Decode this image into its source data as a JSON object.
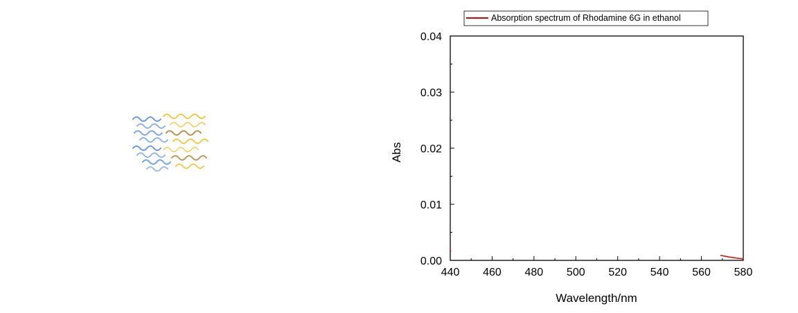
{
  "chart_data": {
    "type": "line",
    "title": "",
    "xlabel": "Wavelength/nm",
    "ylabel": "Abs",
    "xlim": [
      440,
      580
    ],
    "ylim": [
      0.0,
      0.04
    ],
    "x_ticks": [
      440,
      460,
      480,
      500,
      520,
      540,
      560,
      580
    ],
    "y_ticks": [
      0.0,
      0.01,
      0.02,
      0.03,
      0.04
    ],
    "x_tick_labels": [
      "440",
      "460",
      "480",
      "500",
      "520",
      "540",
      "560",
      "580"
    ],
    "y_tick_labels": [
      "0.00",
      "0.01",
      "0.02",
      "0.03",
      "0.04"
    ],
    "grid": false,
    "legend_position": "top",
    "series": [
      {
        "name": "Absorption spectrum of Rhodamine 6G in ethanol",
        "color": "#e00000",
        "segments": [
          {
            "x": [
              440.0,
              440.1,
              440.2
            ],
            "y": [
              0.002,
              0.0018,
              0.0016
            ]
          },
          {
            "x": [
              569.0,
              571.0,
              573.0,
              575.0,
              577.0,
              579.0,
              580.0
            ],
            "y": [
              0.0009,
              0.00075,
              0.00062,
              0.0005,
              0.0004,
              0.0003,
              0.00025
            ]
          }
        ]
      }
    ]
  },
  "decor": {
    "molecule_illustration": {
      "icon": "molecular-ribbons-icon",
      "colors": [
        "#5b8fe0",
        "#f2c230",
        "#b07d2a"
      ]
    }
  }
}
